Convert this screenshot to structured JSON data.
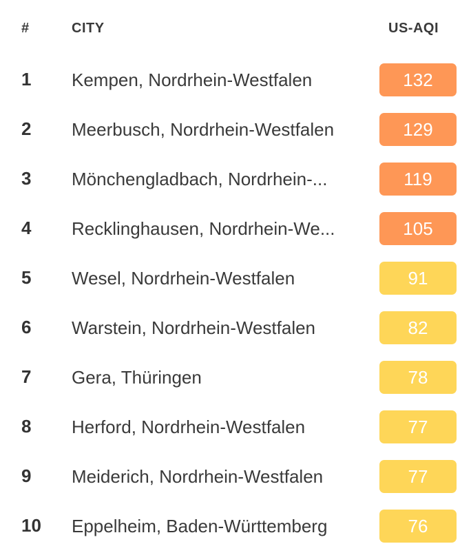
{
  "header": {
    "rank": "#",
    "city": "CITY",
    "aqi": "US-AQI"
  },
  "colors": {
    "unhealthy_sensitive": "#fe9756",
    "moderate": "#fed658"
  },
  "rows": [
    {
      "rank": "1",
      "city": "Kempen, Nordrhein-Westfalen",
      "aqi": "132",
      "level": "orange"
    },
    {
      "rank": "2",
      "city": "Meerbusch, Nordrhein-Westfalen",
      "aqi": "129",
      "level": "orange"
    },
    {
      "rank": "3",
      "city": "Mönchengladbach, Nordrhein-...",
      "aqi": "119",
      "level": "orange"
    },
    {
      "rank": "4",
      "city": "Recklinghausen, Nordrhein-We...",
      "aqi": "105",
      "level": "orange"
    },
    {
      "rank": "5",
      "city": "Wesel, Nordrhein-Westfalen",
      "aqi": "91",
      "level": "yellow"
    },
    {
      "rank": "6",
      "city": "Warstein, Nordrhein-Westfalen",
      "aqi": "82",
      "level": "yellow"
    },
    {
      "rank": "7",
      "city": "Gera, Thüringen",
      "aqi": "78",
      "level": "yellow"
    },
    {
      "rank": "8",
      "city": "Herford, Nordrhein-Westfalen",
      "aqi": "77",
      "level": "yellow"
    },
    {
      "rank": "9",
      "city": "Meiderich, Nordrhein-Westfalen",
      "aqi": "77",
      "level": "yellow"
    },
    {
      "rank": "10",
      "city": "Eppelheim, Baden-Württemberg",
      "aqi": "76",
      "level": "yellow"
    }
  ]
}
